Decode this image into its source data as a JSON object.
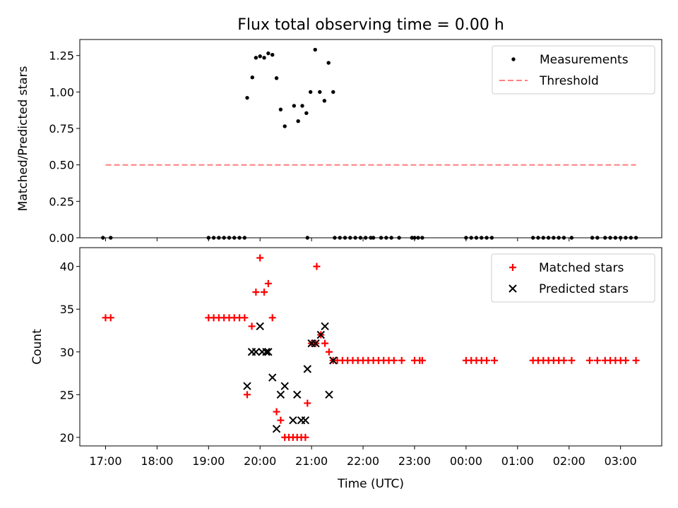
{
  "chart_data": {
    "title": "Flux total observing time = 0.00 h",
    "xlabel": "Time (UTC)",
    "x_unit": "hours since 17:00 UTC",
    "xlim": [
      -0.5,
      10.8
    ],
    "x_ticks": [
      {
        "v": 0,
        "label": "17:00"
      },
      {
        "v": 1,
        "label": "18:00"
      },
      {
        "v": 2,
        "label": "19:00"
      },
      {
        "v": 3,
        "label": "20:00"
      },
      {
        "v": 4,
        "label": "21:00"
      },
      {
        "v": 5,
        "label": "22:00"
      },
      {
        "v": 6,
        "label": "23:00"
      },
      {
        "v": 7,
        "label": "00:00"
      },
      {
        "v": 8,
        "label": "01:00"
      },
      {
        "v": 9,
        "label": "02:00"
      },
      {
        "v": 10,
        "label": "03:00"
      }
    ],
    "panels": [
      {
        "type": "scatter",
        "ylabel": "Matched/Predicted stars",
        "ylim": [
          0,
          1.36
        ],
        "y_ticks": [
          {
            "v": 0,
            "label": "0.00"
          },
          {
            "v": 0.25,
            "label": "0.25"
          },
          {
            "v": 0.5,
            "label": "0.50"
          },
          {
            "v": 0.75,
            "label": "0.75"
          },
          {
            "v": 1.0,
            "label": "1.00"
          },
          {
            "v": 1.25,
            "label": "1.25"
          }
        ],
        "legend_position": "top-right",
        "series": [
          {
            "name": "Measurements",
            "marker": "dot",
            "color": "#000000",
            "points": [
              [
                -0.05,
                0
              ],
              [
                0.1,
                0
              ],
              [
                2.0,
                0
              ],
              [
                2.1,
                0
              ],
              [
                2.2,
                0
              ],
              [
                2.3,
                0
              ],
              [
                2.4,
                0
              ],
              [
                2.5,
                0
              ],
              [
                2.6,
                0
              ],
              [
                2.7,
                0
              ],
              [
                3.92,
                0
              ],
              [
                4.45,
                0
              ],
              [
                4.55,
                0
              ],
              [
                4.65,
                0
              ],
              [
                4.75,
                0
              ],
              [
                4.85,
                0
              ],
              [
                4.95,
                0
              ],
              [
                5.05,
                0
              ],
              [
                5.15,
                0
              ],
              [
                5.2,
                0
              ],
              [
                5.35,
                0
              ],
              [
                5.45,
                0
              ],
              [
                5.55,
                0
              ],
              [
                5.7,
                0
              ],
              [
                5.95,
                0
              ],
              [
                6.0,
                0
              ],
              [
                6.07,
                0
              ],
              [
                6.15,
                0
              ],
              [
                7.0,
                0
              ],
              [
                7.1,
                0
              ],
              [
                7.2,
                0
              ],
              [
                7.3,
                0
              ],
              [
                7.4,
                0
              ],
              [
                7.5,
                0
              ],
              [
                8.3,
                0
              ],
              [
                8.4,
                0
              ],
              [
                8.5,
                0
              ],
              [
                8.6,
                0
              ],
              [
                8.7,
                0
              ],
              [
                8.8,
                0
              ],
              [
                8.9,
                0
              ],
              [
                9.05,
                0
              ],
              [
                9.45,
                0
              ],
              [
                9.55,
                0
              ],
              [
                9.7,
                0
              ],
              [
                9.8,
                0
              ],
              [
                9.9,
                0
              ],
              [
                10.0,
                0
              ],
              [
                10.1,
                0
              ],
              [
                10.2,
                0
              ],
              [
                10.3,
                0
              ],
              [
                2.75,
                0.96
              ],
              [
                2.85,
                1.1
              ],
              [
                2.92,
                1.235
              ],
              [
                3.0,
                1.245
              ],
              [
                3.08,
                1.235
              ],
              [
                3.16,
                1.265
              ],
              [
                3.24,
                1.255
              ],
              [
                3.32,
                1.095
              ],
              [
                3.4,
                0.88
              ],
              [
                3.48,
                0.765
              ],
              [
                3.66,
                0.905
              ],
              [
                3.74,
                0.8
              ],
              [
                3.82,
                0.905
              ],
              [
                3.9,
                0.855
              ],
              [
                3.98,
                1.0
              ],
              [
                4.07,
                1.29
              ],
              [
                4.16,
                1.0
              ],
              [
                4.25,
                0.94
              ],
              [
                4.33,
                1.2
              ],
              [
                4.42,
                1.0
              ]
            ]
          },
          {
            "name": "Threshold",
            "marker": "dashed-line",
            "color": "#ff7f7f",
            "points": [
              [
                0,
                0.5
              ],
              [
                10.3,
                0.5
              ]
            ]
          }
        ]
      },
      {
        "type": "scatter",
        "ylabel": "Count",
        "ylim": [
          19.0,
          42.2
        ],
        "y_ticks": [
          {
            "v": 20,
            "label": "20"
          },
          {
            "v": 25,
            "label": "25"
          },
          {
            "v": 30,
            "label": "30"
          },
          {
            "v": 35,
            "label": "35"
          },
          {
            "v": 40,
            "label": "40"
          }
        ],
        "legend_position": "top-right",
        "series": [
          {
            "name": "Matched stars",
            "marker": "plus",
            "color": "#ff0000",
            "points": [
              [
                0,
                34
              ],
              [
                0.1,
                34
              ],
              [
                2.0,
                34
              ],
              [
                2.1,
                34
              ],
              [
                2.2,
                34
              ],
              [
                2.3,
                34
              ],
              [
                2.4,
                34
              ],
              [
                2.5,
                34
              ],
              [
                2.6,
                34
              ],
              [
                2.7,
                34
              ],
              [
                2.75,
                25
              ],
              [
                2.84,
                33
              ],
              [
                2.92,
                37
              ],
              [
                3.0,
                41
              ],
              [
                3.08,
                37
              ],
              [
                3.16,
                38
              ],
              [
                3.24,
                34
              ],
              [
                3.32,
                23
              ],
              [
                3.4,
                22
              ],
              [
                3.48,
                20
              ],
              [
                3.56,
                20
              ],
              [
                3.64,
                20
              ],
              [
                3.72,
                20
              ],
              [
                3.8,
                20
              ],
              [
                3.88,
                20
              ],
              [
                3.92,
                24
              ],
              [
                4.0,
                31
              ],
              [
                4.08,
                31
              ],
              [
                4.1,
                40
              ],
              [
                4.18,
                32
              ],
              [
                4.26,
                31
              ],
              [
                4.34,
                30
              ],
              [
                4.42,
                29
              ],
              [
                4.5,
                29
              ],
              [
                4.6,
                29
              ],
              [
                4.7,
                29
              ],
              [
                4.8,
                29
              ],
              [
                4.9,
                29
              ],
              [
                5.0,
                29
              ],
              [
                5.1,
                29
              ],
              [
                5.2,
                29
              ],
              [
                5.3,
                29
              ],
              [
                5.4,
                29
              ],
              [
                5.5,
                29
              ],
              [
                5.6,
                29
              ],
              [
                5.75,
                29
              ],
              [
                6.0,
                29
              ],
              [
                6.1,
                29
              ],
              [
                6.15,
                29
              ],
              [
                7.0,
                29
              ],
              [
                7.1,
                29
              ],
              [
                7.2,
                29
              ],
              [
                7.3,
                29
              ],
              [
                7.4,
                29
              ],
              [
                7.55,
                29
              ],
              [
                8.3,
                29
              ],
              [
                8.4,
                29
              ],
              [
                8.5,
                29
              ],
              [
                8.6,
                29
              ],
              [
                8.7,
                29
              ],
              [
                8.8,
                29
              ],
              [
                8.9,
                29
              ],
              [
                9.05,
                29
              ],
              [
                9.4,
                29
              ],
              [
                9.55,
                29
              ],
              [
                9.7,
                29
              ],
              [
                9.8,
                29
              ],
              [
                9.9,
                29
              ],
              [
                10.0,
                29
              ],
              [
                10.1,
                29
              ],
              [
                10.3,
                29
              ]
            ]
          },
          {
            "name": "Predicted stars",
            "marker": "x",
            "color": "#000000",
            "points": [
              [
                2.75,
                26
              ],
              [
                2.84,
                30
              ],
              [
                2.92,
                30
              ],
              [
                3.0,
                33
              ],
              [
                3.04,
                30
              ],
              [
                3.12,
                30
              ],
              [
                3.16,
                30
              ],
              [
                3.24,
                27
              ],
              [
                3.32,
                21
              ],
              [
                3.4,
                25
              ],
              [
                3.48,
                26
              ],
              [
                3.64,
                22
              ],
              [
                3.72,
                25
              ],
              [
                3.8,
                22
              ],
              [
                3.88,
                22
              ],
              [
                3.92,
                28
              ],
              [
                4.0,
                31
              ],
              [
                4.08,
                31
              ],
              [
                4.18,
                32
              ],
              [
                4.26,
                33
              ],
              [
                4.34,
                25
              ],
              [
                4.42,
                29
              ]
            ]
          }
        ]
      }
    ]
  }
}
